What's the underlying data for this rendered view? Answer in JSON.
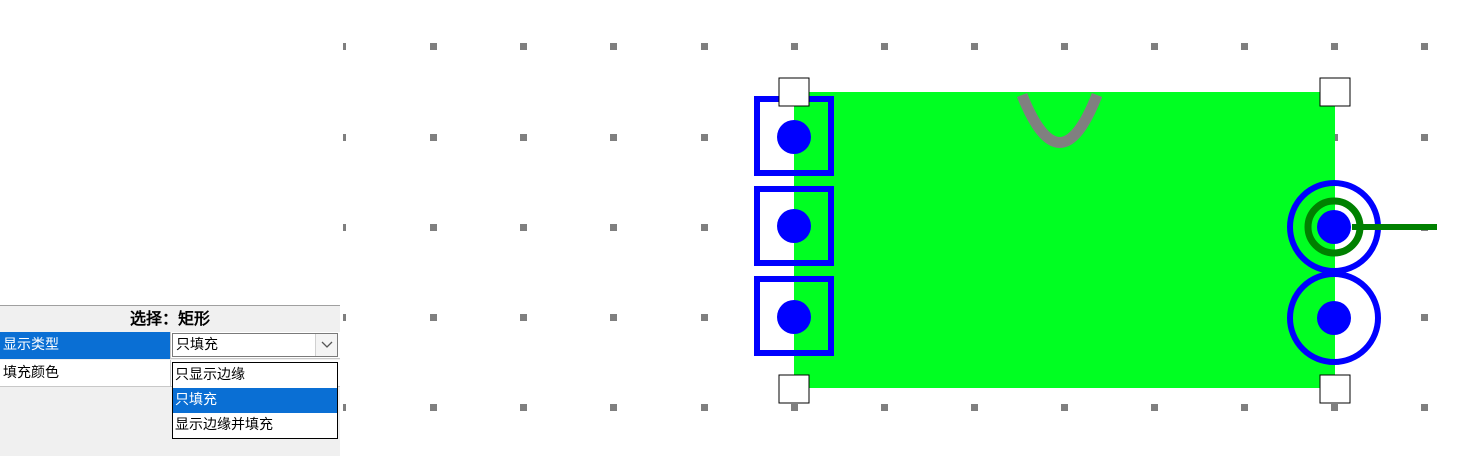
{
  "properties": {
    "title": "选择：矩形",
    "rows": [
      {
        "label": "显示类型",
        "value": "只填充"
      },
      {
        "label": "填充颜色",
        "value": ""
      }
    ]
  },
  "dropdown": {
    "options": [
      "只显示边缘",
      "只填充",
      "显示边缘并填充"
    ],
    "selected_index": 1
  },
  "colors": {
    "fill": "#00ff22",
    "pad": "#0000ff",
    "trace": "#008000",
    "arc": "#808080",
    "grid_dot": "#7f7f7f",
    "selection": "#0a6fd4"
  },
  "icons": [
    "chevron-down-icon",
    "resize-handle"
  ]
}
